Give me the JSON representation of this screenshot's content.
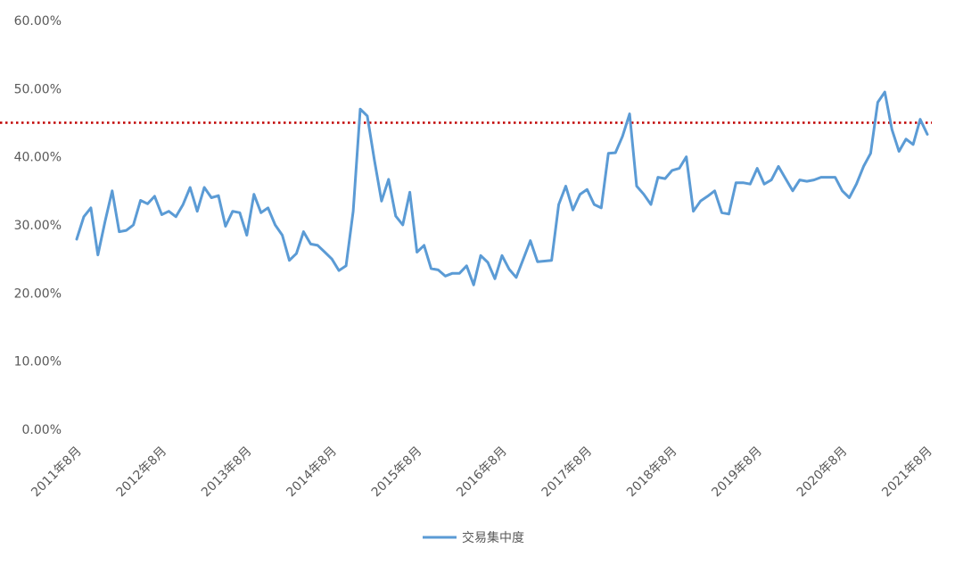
{
  "chart_data": {
    "type": "line",
    "title": "",
    "xlabel": "",
    "ylabel": "",
    "ylim": [
      0,
      0.6
    ],
    "y_ticks": [
      "0.00%",
      "10.00%",
      "20.00%",
      "30.00%",
      "40.00%",
      "50.00%",
      "60.00%"
    ],
    "x_ticks": [
      "2011年8月",
      "2012年8月",
      "2013年8月",
      "2014年8月",
      "2015年8月",
      "2016年8月",
      "2017年8月",
      "2018年8月",
      "2019年8月",
      "2020年8月",
      "2021年8月"
    ],
    "x_start": "2011年8月",
    "x_end": "2021年8月",
    "reference_line": {
      "value": 0.45,
      "style": "dotted",
      "color": "#c00000"
    },
    "legend": {
      "position": "bottom",
      "entries": [
        "交易集中度"
      ]
    },
    "grid": false,
    "series": [
      {
        "name": "交易集中度",
        "color": "#5b9bd5",
        "values": [
          0.279,
          0.312,
          0.325,
          0.256,
          0.305,
          0.35,
          0.29,
          0.292,
          0.3,
          0.336,
          0.331,
          0.342,
          0.315,
          0.32,
          0.312,
          0.33,
          0.355,
          0.32,
          0.355,
          0.34,
          0.343,
          0.298,
          0.32,
          0.318,
          0.285,
          0.345,
          0.318,
          0.325,
          0.3,
          0.285,
          0.248,
          0.258,
          0.29,
          0.272,
          0.27,
          0.26,
          0.25,
          0.233,
          0.24,
          0.32,
          0.47,
          0.46,
          0.395,
          0.335,
          0.367,
          0.313,
          0.3,
          0.348,
          0.26,
          0.27,
          0.236,
          0.234,
          0.225,
          0.229,
          0.229,
          0.24,
          0.212,
          0.255,
          0.245,
          0.221,
          0.255,
          0.235,
          0.223,
          0.25,
          0.277,
          0.246,
          0.247,
          0.248,
          0.33,
          0.357,
          0.322,
          0.345,
          0.352,
          0.33,
          0.325,
          0.405,
          0.406,
          0.43,
          0.463,
          0.357,
          0.345,
          0.33,
          0.37,
          0.368,
          0.38,
          0.383,
          0.4,
          0.32,
          0.335,
          0.342,
          0.35,
          0.318,
          0.316,
          0.362,
          0.362,
          0.36,
          0.383,
          0.36,
          0.366,
          0.386,
          0.368,
          0.35,
          0.366,
          0.364,
          0.366,
          0.37,
          0.37,
          0.37,
          0.35,
          0.34,
          0.36,
          0.386,
          0.405,
          0.48,
          0.495,
          0.44,
          0.408,
          0.426,
          0.418,
          0.455,
          0.433
        ]
      }
    ]
  }
}
